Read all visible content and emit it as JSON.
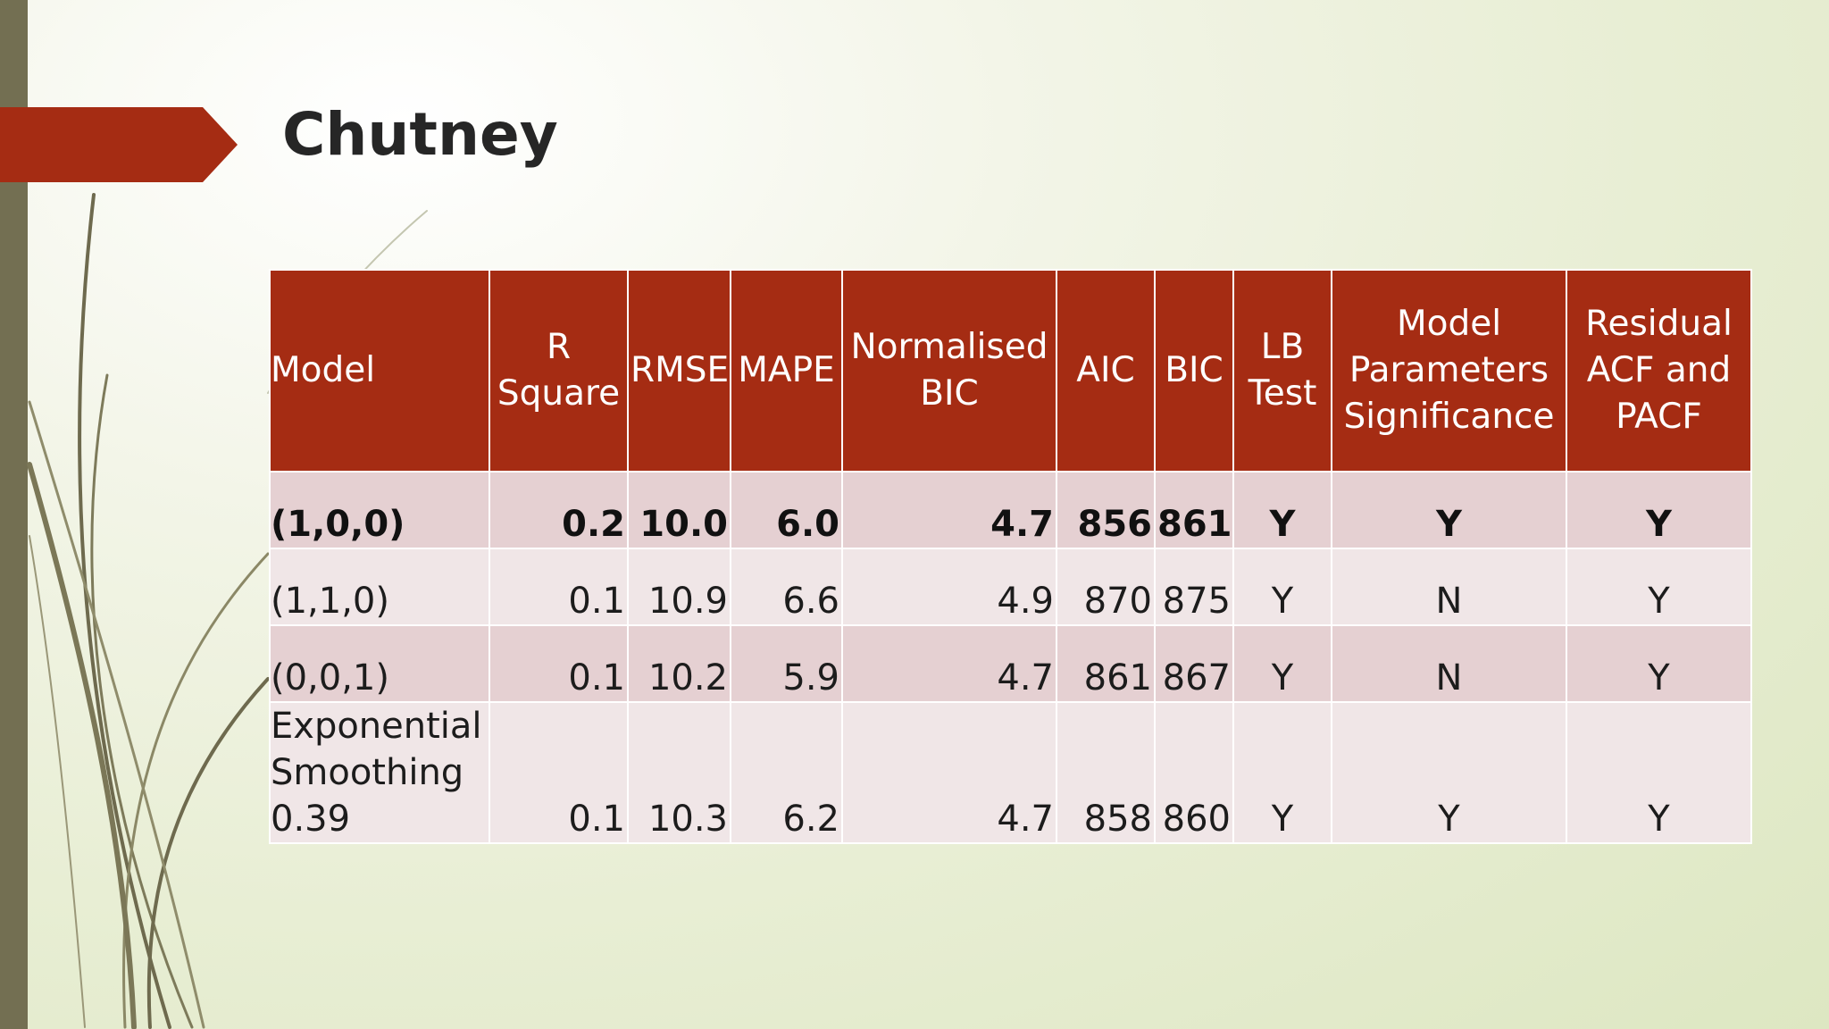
{
  "slide": {
    "title": "Chutney"
  },
  "table": {
    "headers": {
      "model": "Model",
      "r_square": "R Square",
      "rmse": "RMSE",
      "mape": "MAPE",
      "normalised_bic": "Normalised BIC",
      "aic": "AIC",
      "bic": "BIC",
      "lb_test": "LB Test",
      "model_params": "Model Parameters Significance",
      "residual": "Residual ACF and PACF"
    },
    "rows": [
      {
        "model": "(1,0,0)",
        "r_square": "0.2",
        "rmse": "10.0",
        "mape": "6.0",
        "normalised_bic": "4.7",
        "aic": "856",
        "bic": "861",
        "lb_test": "Y",
        "model_params": "Y",
        "residual": "Y"
      },
      {
        "model": "(1,1,0)",
        "r_square": "0.1",
        "rmse": "10.9",
        "mape": "6.6",
        "normalised_bic": "4.9",
        "aic": "870",
        "bic": "875",
        "lb_test": "Y",
        "model_params": "N",
        "residual": "Y"
      },
      {
        "model": "(0,0,1)",
        "r_square": "0.1",
        "rmse": "10.2",
        "mape": "5.9",
        "normalised_bic": "4.7",
        "aic": "861",
        "bic": "867",
        "lb_test": "Y",
        "model_params": "N",
        "residual": "Y"
      },
      {
        "model": "Exponential Smoothing 0.39",
        "r_square": "0.1",
        "rmse": "10.3",
        "mape": "6.2",
        "normalised_bic": "4.7",
        "aic": "858",
        "bic": "860",
        "lb_test": "Y",
        "model_params": "Y",
        "residual": "Y"
      }
    ]
  },
  "theme": {
    "accent": "#a52c13",
    "side_bar": "#736f52",
    "row_odd": "#e5d0d2",
    "row_even": "#f0e6e7"
  }
}
